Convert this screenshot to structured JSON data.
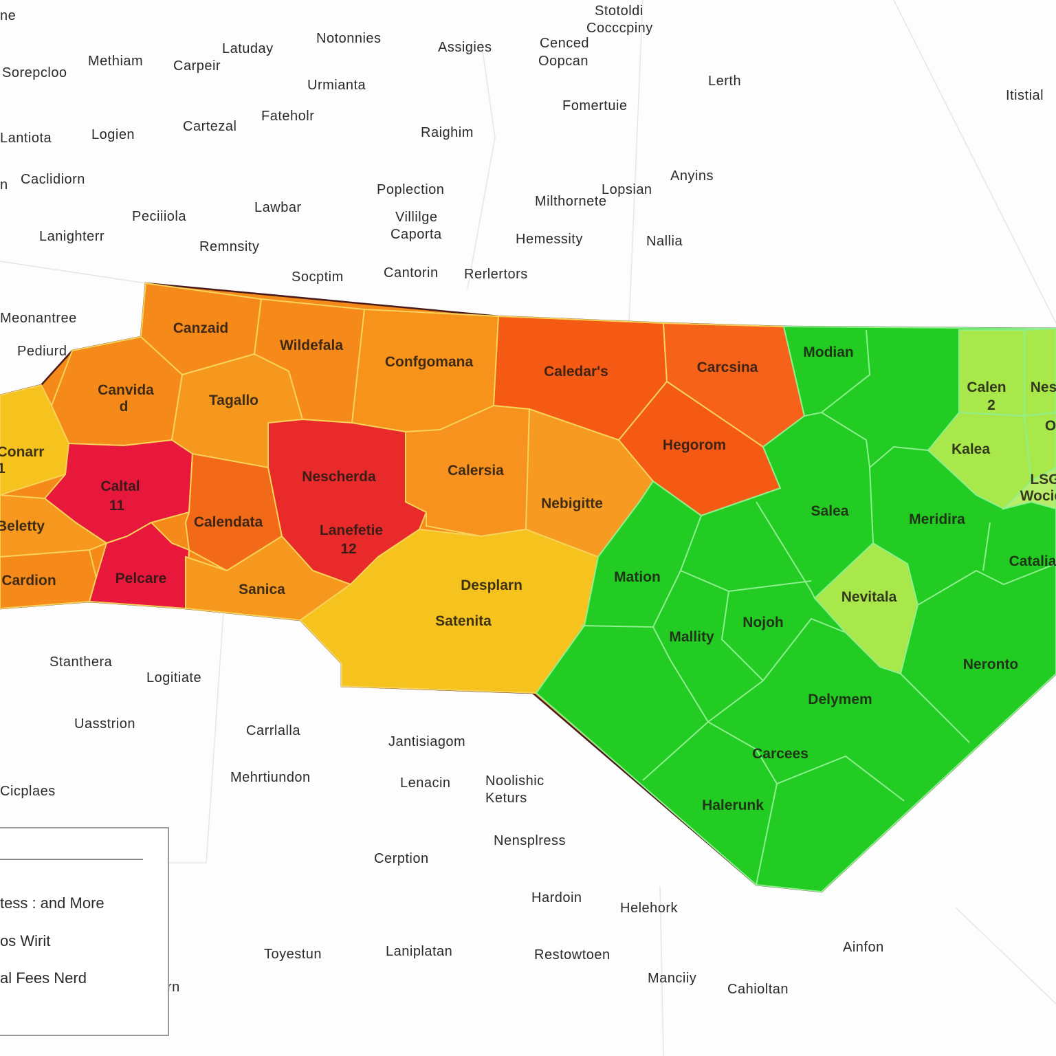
{
  "palette": {
    "orange": "#f58a1a",
    "light_orange": "#f7981e",
    "red_orange": "#f55a14",
    "crimson": "#e8183c",
    "red": "#e92a2a",
    "yellow": "#f6c21e",
    "green": "#22cc22",
    "light_green": "#a8e84a",
    "border_dark": "#4a1a1a",
    "border_green": "#8ef08e"
  },
  "outside_labels": [
    "ne",
    "Stotoldi",
    "Cocccpiny",
    "Notonnies",
    "Assigies",
    "Cenced",
    "Oopcan",
    "Latuday",
    "Methiam",
    "Carpeir",
    "Sorepcloo",
    "Urmianta",
    "Lerth",
    "Itistial",
    "Fomertuie",
    "Fateholr",
    "Raighim",
    "Cartezal",
    "Lantiota",
    "Logien",
    "Anyins",
    "Caclidiorn",
    "n",
    "Poplection",
    "Lopsian",
    "Milthornete",
    "Lawbar",
    "Peciiiola",
    "Villilge",
    "Caporta",
    "Lanighterr",
    "Hemessity",
    "Nallia",
    "Remnsity",
    "Socptim",
    "Cantorin",
    "Rerlertors",
    "Meonantree",
    "Pediurd",
    "Stanthera",
    "Logitiate",
    "Uasstrion",
    "Carrlalla",
    "Jantisiagom",
    "Mehrtiundon",
    "Lenacin",
    "Noolishic",
    "Keturs",
    "Nensplress",
    "Cerption",
    "Hardoin",
    "Helehork",
    "Toyestun",
    "Laniplatan",
    "Restowtoen",
    "Ainfon",
    "Manciiy",
    "Cahioltan",
    "Cicplaes",
    "rn"
  ],
  "county_labels": [
    "Canzaid",
    "Wildefala",
    "Confgomana",
    "Caledar's",
    "Carcsina",
    "Modian",
    "Calen",
    "2",
    "Nes",
    "Kalea",
    "Canvida",
    "d",
    "Tagallo",
    "Conarr",
    "1",
    "Caltal",
    "11",
    "Nescherda",
    "Calersia",
    "Nebigitte",
    "Hegorom",
    "Calendata",
    "Lanefetie",
    "12",
    "Beletty",
    "Cardion",
    "Pelcare",
    "Sanica",
    "Desplarn",
    "Satenita",
    "Salea",
    "Meridira",
    "Catalia",
    "Mation",
    "Nevitala",
    "Mallity",
    "Nojoh",
    "Neronto",
    "Delymem",
    "Carcees",
    "Halerunk",
    "LSG",
    "Wocid",
    "O"
  ],
  "legend": {
    "items": [
      "tess : and More",
      "os Wirit",
      "al Fees Nerd"
    ]
  }
}
